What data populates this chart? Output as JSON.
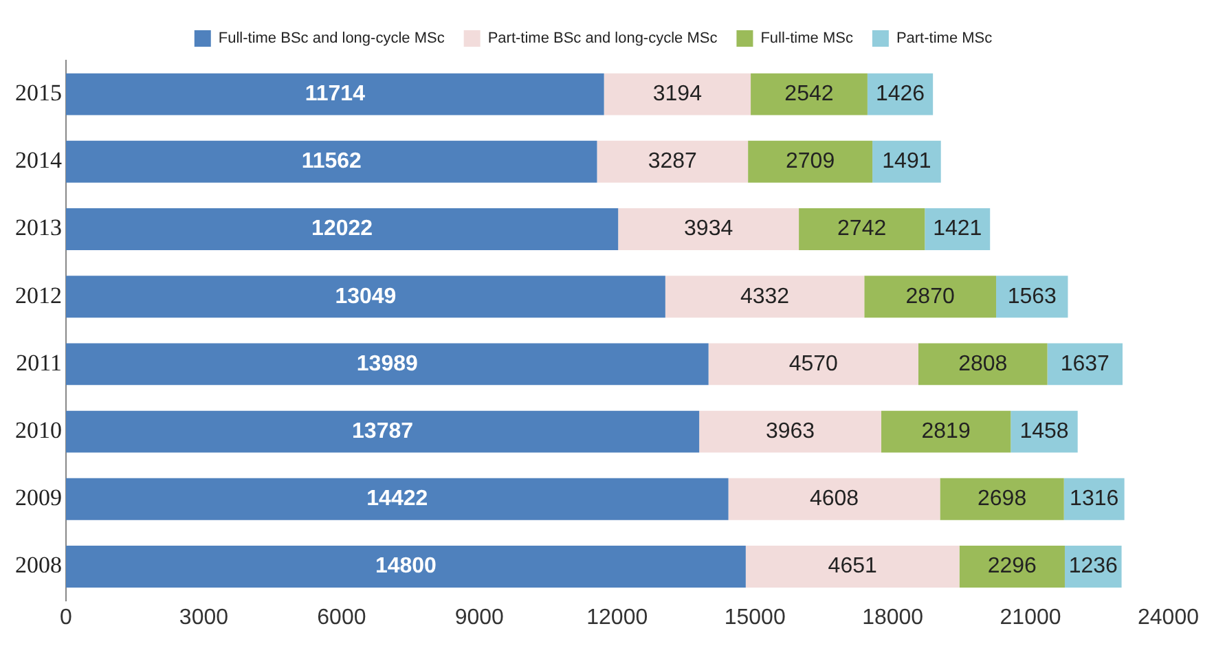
{
  "chart_data": {
    "type": "bar",
    "orientation": "horizontal",
    "stacked": true,
    "data_labels": true,
    "legend": "top",
    "grid": false,
    "categories": [
      "2015",
      "2014",
      "2013",
      "2012",
      "2011",
      "2010",
      "2009",
      "2008"
    ],
    "xlim": [
      0,
      24000
    ],
    "xticks": [
      0,
      3000,
      6000,
      9000,
      12000,
      15000,
      18000,
      21000,
      24000
    ],
    "series": [
      {
        "name": "Full-time BSc and long-cycle MSc",
        "color": "#4f81bd",
        "values": [
          11714,
          11562,
          12022,
          13049,
          13989,
          13787,
          14422,
          14800
        ]
      },
      {
        "name": "Part-time BSc and long-cycle MSc",
        "color": "#f2dcdb",
        "values": [
          3194,
          3287,
          3934,
          4332,
          4570,
          3963,
          4608,
          4651
        ]
      },
      {
        "name": "Full-time MSc",
        "color": "#9bbb59",
        "values": [
          2542,
          2709,
          2742,
          2870,
          2808,
          2819,
          2698,
          2296
        ]
      },
      {
        "name": "Part-time MSc",
        "color": "#92cddc",
        "values": [
          1426,
          1491,
          1421,
          1563,
          1637,
          1458,
          1316,
          1236
        ]
      }
    ]
  }
}
